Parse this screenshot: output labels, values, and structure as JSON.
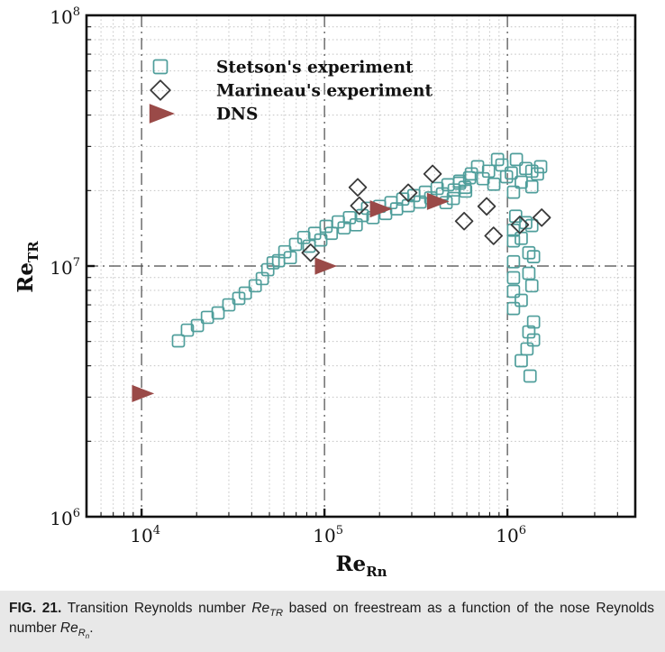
{
  "figure": {
    "caption": {
      "tag": "FIG. 21.",
      "text_1": "Transition Reynolds number ",
      "term_1_main": "Re",
      "term_1_sub": "TR",
      "text_2": " based on freestream as a function of the nose Reynolds number ",
      "term_2_main": "Re",
      "term_2_sub": "R",
      "term_2_subsub": "n",
      "text_3": "."
    }
  },
  "colors": {
    "stetson": "#4f9e9b",
    "marineau": "#3a3a3a",
    "dns": "#9a4a48",
    "grid_minor": "#c4c4c4",
    "grid_major": "#4a4a4a",
    "frame": "#111111",
    "caption_background": "#e8e8e8"
  },
  "chart_data": {
    "type": "scatter",
    "title": "",
    "x_axis": {
      "label_main": "Re",
      "label_sub": "Rn",
      "scale": "log",
      "range": [
        5000,
        5000000
      ],
      "tick_base": "10",
      "ticks": [
        {
          "value": 10000,
          "exponent": "4"
        },
        {
          "value": 100000,
          "exponent": "5"
        },
        {
          "value": 1000000,
          "exponent": "6"
        }
      ]
    },
    "y_axis": {
      "label_main": "Re",
      "label_sub": "TR",
      "scale": "log",
      "range": [
        1000000,
        100000000
      ],
      "tick_base": "10",
      "ticks": [
        {
          "value": 1000000,
          "exponent": "6"
        },
        {
          "value": 10000000,
          "exponent": "7"
        },
        {
          "value": 100000000,
          "exponent": "8"
        }
      ]
    },
    "grid": {
      "minor_style": "dotted",
      "major_style": "dash-dot"
    },
    "legend": {
      "position": "top-left-inside"
    },
    "series": [
      {
        "name": "Stetson's experiment",
        "marker": "square",
        "color": "#4f9e9b",
        "fill": "none",
        "points": [
          [
            15900,
            5030000
          ],
          [
            17800,
            5550000
          ],
          [
            20200,
            5790000
          ],
          [
            22900,
            6240000
          ],
          [
            26200,
            6500000
          ],
          [
            30000,
            7000000
          ],
          [
            34000,
            7430000
          ],
          [
            36900,
            7800000
          ],
          [
            41800,
            8340000
          ],
          [
            45700,
            8910000
          ],
          [
            49000,
            9670000
          ],
          [
            52400,
            10300000
          ],
          [
            56100,
            10500000
          ],
          [
            60700,
            11400000
          ],
          [
            65000,
            10800000
          ],
          [
            69500,
            12200000
          ],
          [
            77100,
            13000000
          ],
          [
            82400,
            12000000
          ],
          [
            88300,
            13500000
          ],
          [
            95500,
            12700000
          ],
          [
            102000,
            14400000
          ],
          [
            109000,
            13500000
          ],
          [
            119000,
            15000000
          ],
          [
            128000,
            14200000
          ],
          [
            137000,
            15600000
          ],
          [
            149000,
            14600000
          ],
          [
            161000,
            15900000
          ],
          [
            172000,
            17000000
          ],
          [
            184000,
            15600000
          ],
          [
            200000,
            17300000
          ],
          [
            216000,
            16200000
          ],
          [
            231000,
            17900000
          ],
          [
            248000,
            16900000
          ],
          [
            268000,
            18500000
          ],
          [
            287000,
            17400000
          ],
          [
            308000,
            19100000
          ],
          [
            333000,
            18000000
          ],
          [
            356000,
            19700000
          ],
          [
            381000,
            18700000
          ],
          [
            413000,
            20400000
          ],
          [
            442000,
            19400000
          ],
          [
            473000,
            21100000
          ],
          [
            512000,
            20100000
          ],
          [
            548000,
            21800000
          ],
          [
            586000,
            20600000
          ],
          [
            621000,
            22500000
          ],
          [
            462000,
            17900000
          ],
          [
            506000,
            18600000
          ],
          [
            548000,
            21400000
          ],
          [
            591000,
            19900000
          ],
          [
            635000,
            23300000
          ],
          [
            687000,
            24900000
          ],
          [
            736000,
            22300000
          ],
          [
            789000,
            23900000
          ],
          [
            843000,
            21200000
          ],
          [
            883000,
            26600000
          ],
          [
            933000,
            25300000
          ],
          [
            989000,
            22700000
          ],
          [
            1050000,
            23500000
          ],
          [
            1120000,
            26600000
          ],
          [
            1190000,
            21600000
          ],
          [
            1260000,
            24500000
          ],
          [
            1360000,
            23900000
          ],
          [
            1460000,
            23300000
          ],
          [
            1360000,
            20700000
          ],
          [
            1080000,
            19700000
          ],
          [
            1520000,
            24900000
          ],
          [
            1110000,
            15800000
          ],
          [
            1260000,
            14900000
          ],
          [
            1080000,
            13900000
          ],
          [
            1360000,
            14500000
          ],
          [
            1190000,
            12900000
          ],
          [
            1080000,
            12600000
          ],
          [
            1310000,
            11300000
          ],
          [
            1390000,
            10900000
          ],
          [
            1080000,
            10400000
          ],
          [
            1310000,
            9360000
          ],
          [
            1080000,
            8980000
          ],
          [
            1360000,
            8340000
          ],
          [
            1080000,
            7930000
          ],
          [
            1190000,
            7300000
          ],
          [
            1080000,
            6770000
          ],
          [
            1390000,
            5980000
          ],
          [
            1310000,
            5460000
          ],
          [
            1390000,
            5070000
          ],
          [
            1280000,
            4670000
          ],
          [
            1190000,
            4190000
          ],
          [
            1330000,
            3640000
          ]
        ]
      },
      {
        "name": "Marineau's experiment",
        "marker": "diamond",
        "color": "#3a3a3a",
        "fill": "none",
        "points": [
          [
            84000,
            11300000
          ],
          [
            152000,
            20600000
          ],
          [
            155000,
            17400000
          ],
          [
            287000,
            19600000
          ],
          [
            390000,
            23300000
          ],
          [
            580000,
            15100000
          ],
          [
            770000,
            17300000
          ],
          [
            840000,
            13200000
          ],
          [
            1170000,
            14600000
          ],
          [
            1540000,
            15600000
          ]
        ]
      },
      {
        "name": "DNS",
        "marker": "triangle-right",
        "color": "#9a4a48",
        "fill": "#9a4a48",
        "points": [
          [
            10000,
            3100000
          ],
          [
            100000,
            10000000
          ],
          [
            200000,
            16900000
          ],
          [
            410000,
            18100000
          ]
        ]
      }
    ]
  }
}
